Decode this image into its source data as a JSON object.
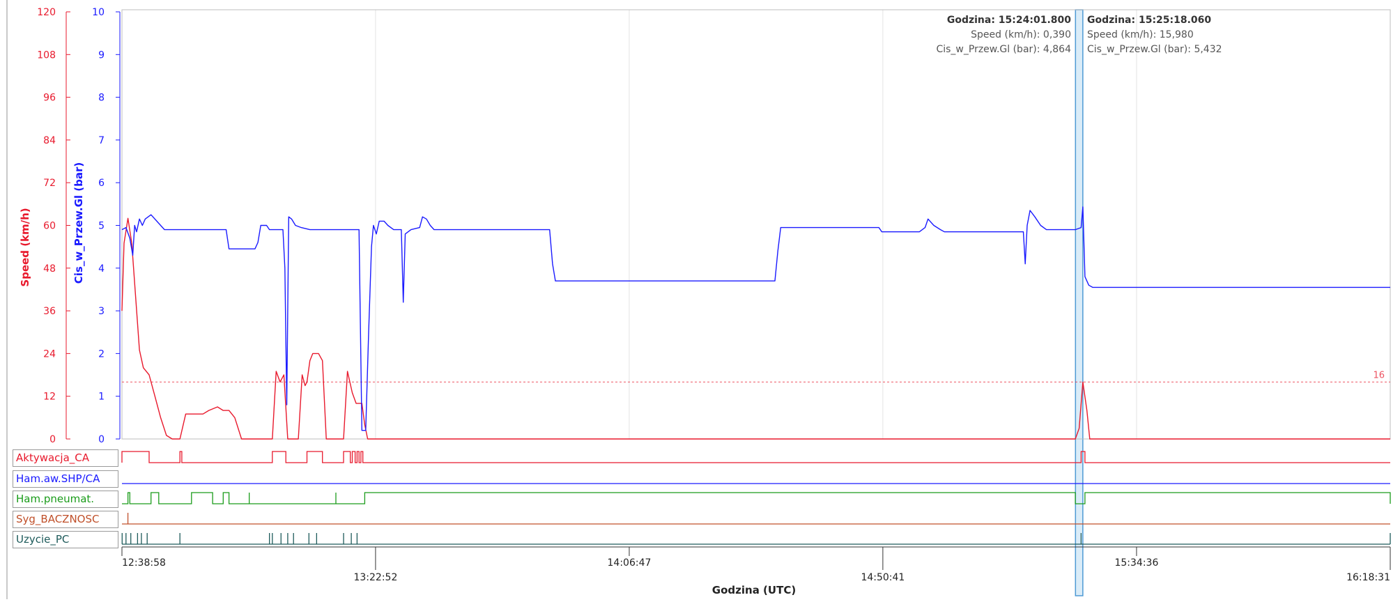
{
  "colors": {
    "speed": "#e8192c",
    "pressure": "#1a1aff",
    "green": "#1a9c1a",
    "brown": "#c0502a",
    "teal": "#1d5a5a",
    "grid": "#e3e3e3",
    "cursor_fill": "#d7ebf8",
    "cursor_stroke": "#3a8fd0"
  },
  "chart_data": {
    "type": "line",
    "xlabel": "Godzina (UTC)",
    "x_ticks": [
      "12:38:58",
      "13:22:52",
      "14:06:47",
      "14:50:41",
      "15:34:36",
      "16:18:31"
    ],
    "x_range": [
      "12:38:58",
      "16:18:31"
    ],
    "left_axis": {
      "label": "Speed (km/h)",
      "range": [
        0,
        120
      ],
      "ticks": [
        "0",
        "12",
        "24",
        "36",
        "48",
        "60",
        "72",
        "84",
        "96",
        "108",
        "120"
      ]
    },
    "right_axis": {
      "label": "Cis_w_Przew.Gl (bar)",
      "range": [
        0,
        10
      ],
      "ticks": [
        "0",
        "1",
        "2",
        "3",
        "4",
        "5",
        "6",
        "7",
        "8",
        "9",
        "10"
      ]
    },
    "threshold": {
      "value": 16,
      "label": "16"
    },
    "series": [
      {
        "name": "Speed (km/h)",
        "axis": "left",
        "points": [
          [
            "12:38:58",
            36
          ],
          [
            "12:39:20",
            55
          ],
          [
            "12:40:00",
            62
          ],
          [
            "12:40:40",
            55
          ],
          [
            "12:41:20",
            40
          ],
          [
            "12:42:00",
            25
          ],
          [
            "12:42:40",
            20
          ],
          [
            "12:43:40",
            18
          ],
          [
            "12:44:40",
            12
          ],
          [
            "12:45:40",
            6
          ],
          [
            "12:46:40",
            1
          ],
          [
            "12:47:40",
            0
          ],
          [
            "12:49:00",
            0
          ],
          [
            "12:50:00",
            7
          ],
          [
            "12:53:00",
            7
          ],
          [
            "12:54:00",
            8
          ],
          [
            "12:55:30",
            9
          ],
          [
            "12:56:30",
            8
          ],
          [
            "12:57:30",
            8
          ],
          [
            "12:58:30",
            6
          ],
          [
            "12:59:40",
            0
          ],
          [
            "13:05:00",
            0
          ],
          [
            "13:05:40",
            19
          ],
          [
            "13:06:20",
            16
          ],
          [
            "13:07:00",
            18
          ],
          [
            "13:07:40",
            0
          ],
          [
            "13:09:30",
            0
          ],
          [
            "13:10:10",
            18
          ],
          [
            "13:10:40",
            15
          ],
          [
            "13:11:00",
            16
          ],
          [
            "13:11:30",
            22
          ],
          [
            "13:12:00",
            24
          ],
          [
            "13:13:00",
            24
          ],
          [
            "13:13:40",
            22
          ],
          [
            "13:14:20",
            0
          ],
          [
            "13:17:20",
            0
          ],
          [
            "13:18:00",
            19
          ],
          [
            "13:18:50",
            13
          ],
          [
            "13:19:30",
            10
          ],
          [
            "13:20:30",
            10
          ],
          [
            "13:21:00",
            4
          ],
          [
            "13:21:30",
            0
          ],
          [
            "13:22:00",
            0
          ],
          [
            "15:24:00",
            0
          ],
          [
            "15:24:40",
            3
          ],
          [
            "15:25:18",
            16
          ],
          [
            "15:26:00",
            8
          ],
          [
            "15:26:30",
            0
          ],
          [
            "16:18:31",
            0
          ]
        ]
      },
      {
        "name": "Cis_w_Przew.Gl (bar)",
        "axis": "right",
        "points": [
          [
            "12:38:58",
            4.9
          ],
          [
            "12:39:40",
            4.95
          ],
          [
            "12:40:20",
            4.7
          ],
          [
            "12:40:50",
            4.3
          ],
          [
            "12:41:10",
            5.0
          ],
          [
            "12:41:30",
            4.85
          ],
          [
            "12:42:00",
            5.15
          ],
          [
            "12:42:30",
            5.0
          ],
          [
            "12:43:00",
            5.15
          ],
          [
            "12:44:00",
            5.25
          ],
          [
            "12:45:00",
            5.1
          ],
          [
            "12:45:40",
            5.0
          ],
          [
            "12:46:20",
            4.9
          ],
          [
            "12:50:00",
            4.9
          ],
          [
            "12:57:00",
            4.9
          ],
          [
            "12:57:30",
            4.45
          ],
          [
            "13:00:00",
            4.45
          ],
          [
            "13:02:00",
            4.45
          ],
          [
            "13:02:30",
            4.6
          ],
          [
            "13:03:00",
            5.0
          ],
          [
            "13:04:00",
            5.0
          ],
          [
            "13:04:30",
            4.9
          ],
          [
            "13:06:50",
            4.9
          ],
          [
            "13:07:10",
            4.0
          ],
          [
            "13:07:30",
            0.8
          ],
          [
            "13:07:50",
            5.2
          ],
          [
            "13:08:20",
            5.15
          ],
          [
            "13:09:00",
            5.0
          ],
          [
            "13:10:00",
            4.95
          ],
          [
            "13:11:30",
            4.9
          ],
          [
            "13:20:00",
            4.9
          ],
          [
            "13:20:30",
            0.2
          ],
          [
            "13:21:10",
            0.2
          ],
          [
            "13:21:40",
            2.5
          ],
          [
            "13:22:10",
            4.5
          ],
          [
            "13:22:30",
            5.0
          ],
          [
            "13:23:00",
            4.8
          ],
          [
            "13:23:30",
            5.1
          ],
          [
            "13:24:20",
            5.1
          ],
          [
            "13:25:00",
            5.0
          ],
          [
            "13:26:00",
            4.9
          ],
          [
            "13:27:20",
            4.9
          ],
          [
            "13:27:40",
            3.2
          ],
          [
            "13:28:00",
            4.8
          ],
          [
            "13:29:00",
            4.9
          ],
          [
            "13:30:30",
            4.95
          ],
          [
            "13:31:00",
            5.2
          ],
          [
            "13:31:40",
            5.15
          ],
          [
            "13:32:20",
            5.0
          ],
          [
            "13:33:00",
            4.9
          ],
          [
            "13:53:00",
            4.9
          ],
          [
            "13:53:30",
            4.1
          ],
          [
            "13:54:00",
            3.7
          ],
          [
            "14:32:00",
            3.7
          ],
          [
            "14:32:30",
            4.4
          ],
          [
            "14:33:00",
            4.95
          ],
          [
            "14:50:00",
            4.95
          ],
          [
            "14:50:30",
            4.85
          ],
          [
            "14:57:00",
            4.85
          ],
          [
            "14:58:00",
            4.95
          ],
          [
            "14:58:30",
            5.15
          ],
          [
            "14:59:30",
            5.0
          ],
          [
            "15:00:40",
            4.9
          ],
          [
            "15:01:20",
            4.85
          ],
          [
            "15:15:00",
            4.85
          ],
          [
            "15:15:20",
            4.1
          ],
          [
            "15:15:40",
            5.0
          ],
          [
            "15:16:10",
            5.35
          ],
          [
            "15:17:00",
            5.2
          ],
          [
            "15:18:00",
            5.0
          ],
          [
            "15:19:00",
            4.9
          ],
          [
            "15:24:00",
            4.9
          ],
          [
            "15:25:00",
            4.95
          ],
          [
            "15:25:18",
            5.432
          ],
          [
            "15:25:40",
            3.8
          ],
          [
            "15:26:20",
            3.6
          ],
          [
            "15:27:00",
            3.55
          ],
          [
            "16:18:31",
            3.55
          ]
        ]
      }
    ],
    "cursor": {
      "from": "15:24:01.800",
      "to": "15:25:18.060"
    },
    "readouts": [
      {
        "title": "Godzina: 15:24:01.800",
        "speed": "Speed (km/h): 0,390",
        "pressure": "Cis_w_Przew.Gl (bar): 4,864"
      },
      {
        "title": "Godzina: 15:25:18.060",
        "speed": "Speed (km/h): 15,980",
        "pressure": "Cis_w_Przew.Gl (bar): 5,432"
      }
    ],
    "digital_signals": [
      {
        "name": "Aktywacja_CA",
        "color": "#e8192c",
        "high_intervals": [
          [
            "12:38:58",
            "12:43:40"
          ],
          [
            "12:49:00",
            "12:49:20"
          ],
          [
            "13:05:00",
            "13:07:20"
          ],
          [
            "13:11:00",
            "13:13:40"
          ],
          [
            "13:17:20",
            "13:18:30"
          ],
          [
            "13:18:50",
            "13:19:20"
          ],
          [
            "13:19:40",
            "13:20:00"
          ],
          [
            "13:20:20",
            "13:20:40"
          ],
          [
            "15:25:00",
            "15:25:40"
          ]
        ]
      },
      {
        "name": "Ham.aw.SHP/CA",
        "color": "#1a1aff",
        "high_intervals": []
      },
      {
        "name": "Ham.pneumat.",
        "color": "#1a9c1a",
        "high_intervals": [
          [
            "12:40:00",
            "12:40:20"
          ],
          [
            "12:44:00",
            "12:45:20"
          ],
          [
            "12:51:00",
            "12:54:40"
          ],
          [
            "12:56:30",
            "12:57:30"
          ],
          [
            "13:21:00",
            "15:24:00"
          ],
          [
            "15:25:40",
            "16:18:31"
          ]
        ],
        "spikes": [
          "13:01:00",
          "13:16:00"
        ]
      },
      {
        "name": "Syg_BACZNOSC",
        "color": "#c0502a",
        "high_intervals": [],
        "spikes": [
          "12:40:00"
        ]
      },
      {
        "name": "Uzycie_PC",
        "color": "#1d5a5a",
        "high_intervals": [],
        "spikes": [
          "12:39:00",
          "12:39:40",
          "12:40:30",
          "12:41:40",
          "12:42:20",
          "12:43:20",
          "12:49:00",
          "13:04:30",
          "13:05:00",
          "13:06:30",
          "13:07:40",
          "13:08:40",
          "13:11:20",
          "13:12:40",
          "13:17:20",
          "13:18:40",
          "13:19:40",
          "15:25:00",
          "16:18:31"
        ]
      }
    ]
  }
}
